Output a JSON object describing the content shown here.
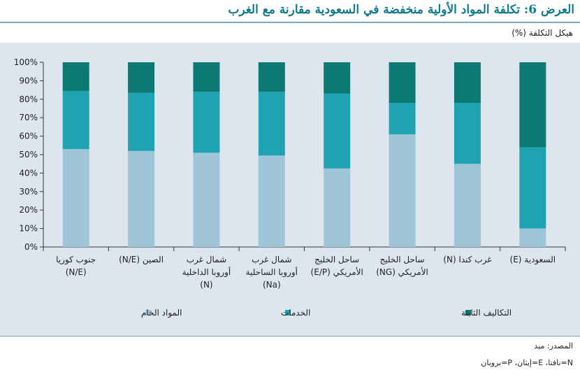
{
  "header": {
    "title": "العرض 6: تكلفة المواد الأولية منخفضة في السعودية مقارنة مع الغرب",
    "subtitle": "هيكل التكلفة (%)"
  },
  "chart_data": {
    "type": "bar",
    "stacked": true,
    "ylabel": "",
    "ylim": [
      0,
      100
    ],
    "yticks": [
      "0%",
      "10%",
      "20%",
      "30%",
      "40%",
      "50%",
      "60%",
      "70%",
      "80%",
      "90%",
      "100%"
    ],
    "categories": [
      [
        "جنوب كوريا",
        "(N/E)"
      ],
      [
        "الصين (N/E)"
      ],
      [
        "شمال غرب",
        "أوروبا الداخلية",
        "(N)"
      ],
      [
        "شمال غرب",
        "أوروبا الساحلية",
        "(Na)"
      ],
      [
        "ساحل الخليج",
        "الأمريكي (E/P)"
      ],
      [
        "ساحل الخليج",
        "الأمريكي (NG)"
      ],
      [
        "غرب كندا (N)"
      ],
      [
        "السعودية (E)"
      ]
    ],
    "series": [
      {
        "name": "المواد الخام",
        "color": "#9fc6d8",
        "values": [
          53,
          52,
          51,
          49.5,
          42.5,
          61,
          45,
          10
        ]
      },
      {
        "name": "الخدمات",
        "color": "#1fa3b3",
        "values": [
          31.5,
          31.5,
          33,
          34.5,
          40.5,
          17,
          33,
          44
        ]
      },
      {
        "name": "التكاليف الثابتة",
        "color": "#0c7a72",
        "values": [
          15.5,
          16.5,
          16,
          16,
          17,
          22,
          22,
          46
        ]
      }
    ],
    "grid": false,
    "legend_position": "bottom"
  },
  "footer": {
    "source": "المصدر: ميد",
    "note": "N=نافتا، E=إيثان، P=بروبان"
  }
}
